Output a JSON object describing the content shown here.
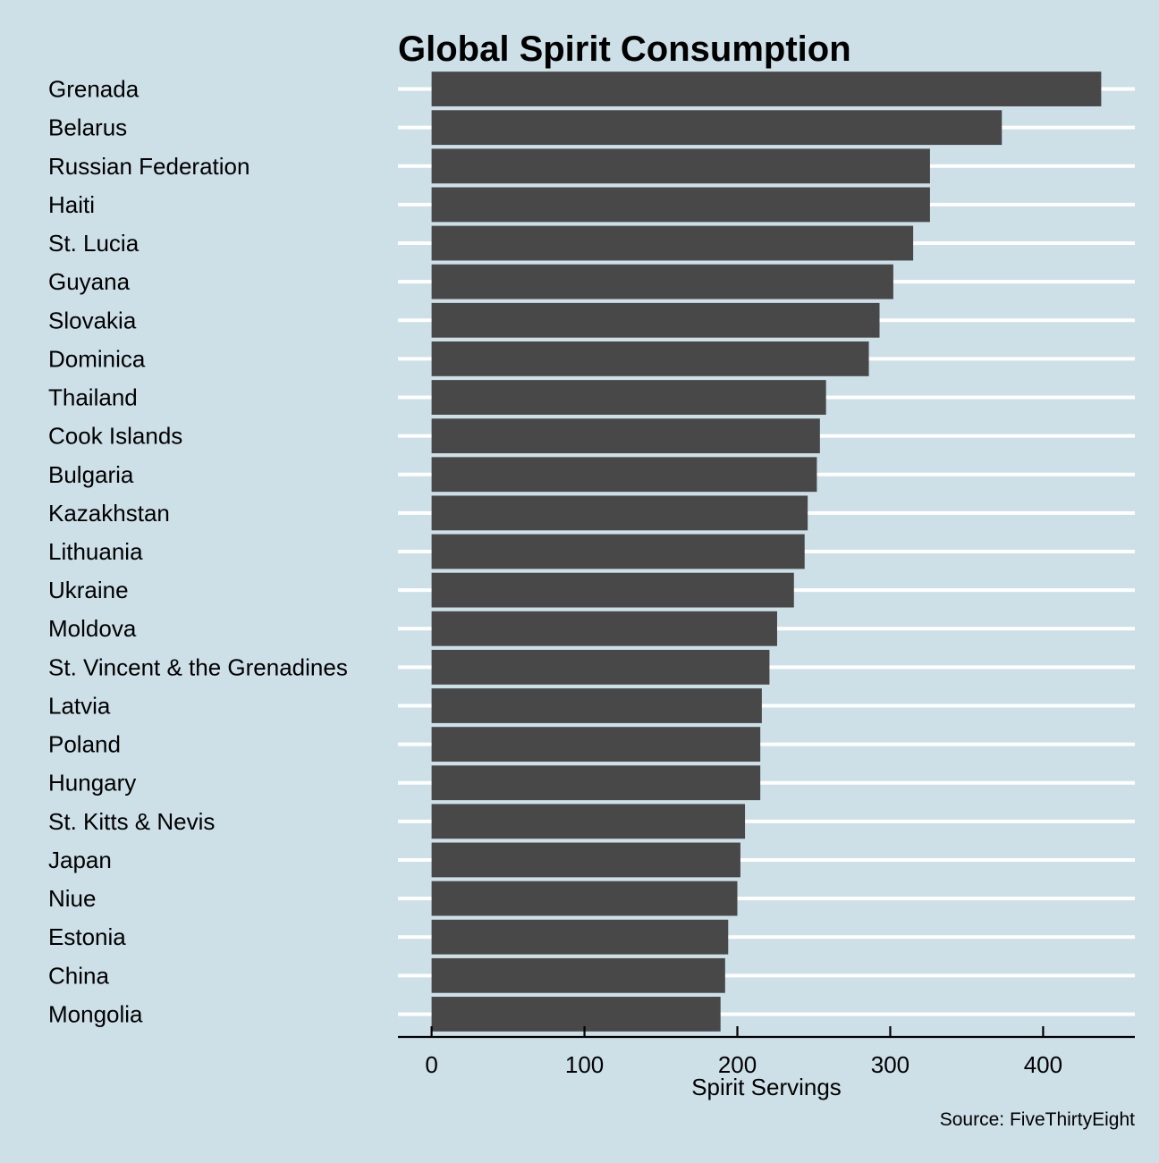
{
  "colors": {
    "background": "#cddfe7",
    "bar": "#484848",
    "gridline": "#ffffff",
    "axis": "#000000",
    "text": "#000000"
  },
  "chart_data": {
    "type": "bar",
    "orientation": "horizontal",
    "title": "Global Spirit Consumption",
    "xlabel": "Spirit Servings",
    "ylabel": "",
    "caption": "Source: FiveThirtyEight",
    "xlim": [
      -22,
      460
    ],
    "xticks": [
      0,
      100,
      200,
      300,
      400
    ],
    "xtick_labels": [
      "0",
      "100",
      "200",
      "300",
      "400"
    ],
    "grid": "horizontal major gridlines only",
    "legend": "none",
    "categories": [
      "Grenada",
      "Belarus",
      "Russian Federation",
      "Haiti",
      "St. Lucia",
      "Guyana",
      "Slovakia",
      "Dominica",
      "Thailand",
      "Cook Islands",
      "Bulgaria",
      "Kazakhstan",
      "Lithuania",
      "Ukraine",
      "Moldova",
      "St. Vincent & the Grenadines",
      "Latvia",
      "Poland",
      "Hungary",
      "St. Kitts & Nevis",
      "Japan",
      "Niue",
      "Estonia",
      "China",
      "Mongolia"
    ],
    "values": [
      438,
      373,
      326,
      326,
      315,
      302,
      293,
      286,
      258,
      254,
      252,
      246,
      244,
      237,
      226,
      221,
      216,
      215,
      215,
      205,
      202,
      200,
      194,
      192,
      189
    ]
  }
}
